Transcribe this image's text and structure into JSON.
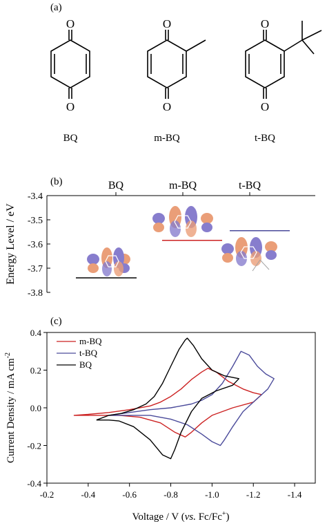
{
  "panel_labels": {
    "a": "(a)",
    "b": "(b)",
    "c": "(c)"
  },
  "molecules": [
    {
      "label": "BQ",
      "substituent": "none"
    },
    {
      "label": "m-BQ",
      "substituent": "methyl"
    },
    {
      "label": "t-BQ",
      "substituent": "tert-butyl"
    }
  ],
  "atom_label": "O",
  "colors": {
    "orbital_positive": "#e8946a",
    "orbital_negative": "#7b6fc8",
    "mBQ": "#cc2222",
    "tBQ": "#4a4a9a",
    "BQ": "#000000"
  },
  "chart_data": [
    {
      "type": "scatter",
      "panel": "b",
      "ylabel": "Energy Level / eV",
      "ylim": [
        -3.8,
        -3.4
      ],
      "y_ticks": [
        "-3.4",
        "-3.5",
        "-3.6",
        "-3.7",
        "-3.8"
      ],
      "categories": [
        "BQ",
        "m-BQ",
        "t-BQ"
      ],
      "series": [
        {
          "name": "BQ",
          "values": [
            -3.74
          ],
          "color": "#000000"
        },
        {
          "name": "m-BQ",
          "values": [
            -3.585
          ],
          "color": "#cc2222"
        },
        {
          "name": "t-BQ",
          "values": [
            -3.545
          ],
          "color": "#4a4a9a"
        }
      ]
    },
    {
      "type": "line",
      "panel": "c",
      "xlabel_main": "Voltage / V (",
      "xlabel_italic": "vs.",
      "xlabel_ref": "Fc/Fc",
      "xlabel_sup": "+",
      "xlabel_close": ")",
      "ylabel_main": "Current Density / mA cm",
      "ylabel_sup": "-2",
      "xlim": [
        -0.2,
        -1.5
      ],
      "ylim": [
        -0.4,
        0.4
      ],
      "x_ticks": [
        "-0.2",
        "-0.4",
        "-0.6",
        "-0.8",
        "-1.0",
        "-1.2",
        "-1.4"
      ],
      "y_ticks": [
        "-0.4",
        "-0.2",
        "0.0",
        "0.2",
        "0.4"
      ],
      "legend_position": "top-left",
      "series": [
        {
          "name": "m-BQ",
          "color": "#cc2222",
          "points": [
            [
              -0.33,
              -0.04
            ],
            [
              -0.4,
              -0.035
            ],
            [
              -0.5,
              -0.025
            ],
            [
              -0.6,
              -0.01
            ],
            [
              -0.7,
              0.01
            ],
            [
              -0.75,
              0.03
            ],
            [
              -0.8,
              0.06
            ],
            [
              -0.85,
              0.1
            ],
            [
              -0.9,
              0.15
            ],
            [
              -0.95,
              0.19
            ],
            [
              -0.98,
              0.21
            ],
            [
              -1.02,
              0.19
            ],
            [
              -1.08,
              0.14
            ],
            [
              -1.15,
              0.1
            ],
            [
              -1.2,
              0.08
            ],
            [
              -1.24,
              0.07
            ],
            [
              -1.2,
              0.03
            ],
            [
              -1.1,
              0.0
            ],
            [
              -1.0,
              -0.04
            ],
            [
              -0.95,
              -0.08
            ],
            [
              -0.9,
              -0.13
            ],
            [
              -0.87,
              -0.155
            ],
            [
              -0.82,
              -0.13
            ],
            [
              -0.75,
              -0.08
            ],
            [
              -0.65,
              -0.05
            ],
            [
              -0.55,
              -0.04
            ],
            [
              -0.45,
              -0.04
            ],
            [
              -0.37,
              -0.04
            ],
            [
              -0.33,
              -0.04
            ]
          ]
        },
        {
          "name": "t-BQ",
          "color": "#4a4a9a",
          "points": [
            [
              -0.5,
              -0.04
            ],
            [
              -0.6,
              -0.025
            ],
            [
              -0.7,
              -0.01
            ],
            [
              -0.8,
              0.0
            ],
            [
              -0.9,
              0.02
            ],
            [
              -0.95,
              0.04
            ],
            [
              -1.0,
              0.07
            ],
            [
              -1.05,
              0.13
            ],
            [
              -1.1,
              0.22
            ],
            [
              -1.14,
              0.3
            ],
            [
              -1.18,
              0.28
            ],
            [
              -1.22,
              0.22
            ],
            [
              -1.26,
              0.18
            ],
            [
              -1.3,
              0.155
            ],
            [
              -1.27,
              0.1
            ],
            [
              -1.22,
              0.05
            ],
            [
              -1.15,
              -0.02
            ],
            [
              -1.1,
              -0.1
            ],
            [
              -1.06,
              -0.17
            ],
            [
              -1.04,
              -0.2
            ],
            [
              -1.0,
              -0.18
            ],
            [
              -0.95,
              -0.14
            ],
            [
              -0.88,
              -0.09
            ],
            [
              -0.8,
              -0.06
            ],
            [
              -0.7,
              -0.04
            ],
            [
              -0.6,
              -0.04
            ],
            [
              -0.5,
              -0.04
            ]
          ]
        },
        {
          "name": "BQ",
          "color": "#000000",
          "points": [
            [
              -0.44,
              -0.065
            ],
            [
              -0.5,
              -0.04
            ],
            [
              -0.56,
              -0.03
            ],
            [
              -0.62,
              -0.01
            ],
            [
              -0.68,
              0.02
            ],
            [
              -0.72,
              0.06
            ],
            [
              -0.76,
              0.13
            ],
            [
              -0.8,
              0.22
            ],
            [
              -0.84,
              0.31
            ],
            [
              -0.87,
              0.36
            ],
            [
              -0.88,
              0.37
            ],
            [
              -0.91,
              0.33
            ],
            [
              -0.95,
              0.26
            ],
            [
              -1.0,
              0.2
            ],
            [
              -1.06,
              0.17
            ],
            [
              -1.13,
              0.155
            ],
            [
              -1.1,
              0.12
            ],
            [
              -1.02,
              0.09
            ],
            [
              -0.95,
              0.05
            ],
            [
              -0.9,
              -0.02
            ],
            [
              -0.85,
              -0.13
            ],
            [
              -0.82,
              -0.22
            ],
            [
              -0.8,
              -0.27
            ],
            [
              -0.76,
              -0.25
            ],
            [
              -0.7,
              -0.17
            ],
            [
              -0.62,
              -0.1
            ],
            [
              -0.55,
              -0.07
            ],
            [
              -0.5,
              -0.065
            ],
            [
              -0.44,
              -0.065
            ]
          ]
        }
      ]
    }
  ]
}
